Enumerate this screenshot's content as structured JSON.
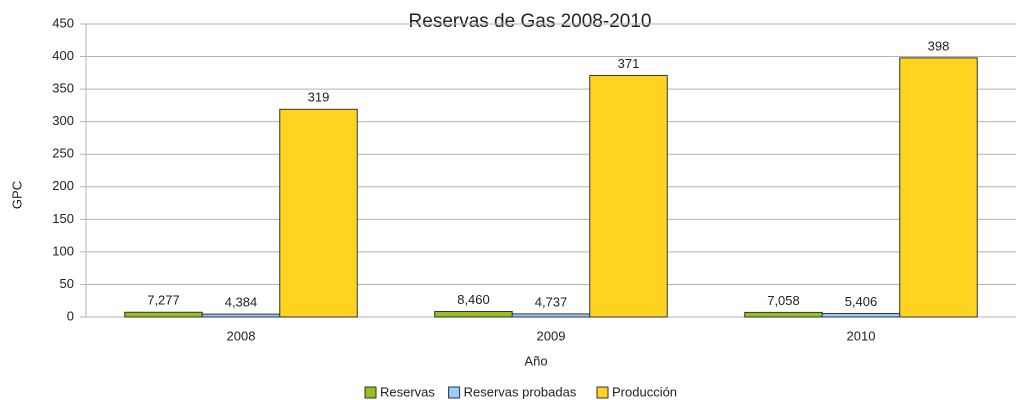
{
  "chart_data": {
    "type": "bar",
    "title": "Reservas de Gas 2008-2010",
    "x_label": "Año",
    "y_label": "GPC",
    "categories": [
      "2008",
      "2009",
      "2010"
    ],
    "series": [
      {
        "name": "Reservas",
        "color": "#94c11f",
        "values": [
          7.277,
          8.46,
          7.058
        ],
        "value_labels": [
          "7,277",
          "8,460",
          "7,058"
        ]
      },
      {
        "name": "Reservas probadas",
        "color": "#99ccff",
        "values": [
          4.384,
          4.737,
          5.406
        ],
        "value_labels": [
          "4,384",
          "4,737",
          "5,406"
        ]
      },
      {
        "name": "Producción",
        "color": "#ffd320",
        "values": [
          319,
          371,
          398
        ],
        "value_labels": [
          "319",
          "371",
          "398"
        ]
      }
    ],
    "ylim": [
      0,
      450
    ],
    "yticks": [
      0,
      50,
      100,
      150,
      200,
      250,
      300,
      350,
      400,
      450
    ],
    "grid": true,
    "legend": "bottom"
  }
}
